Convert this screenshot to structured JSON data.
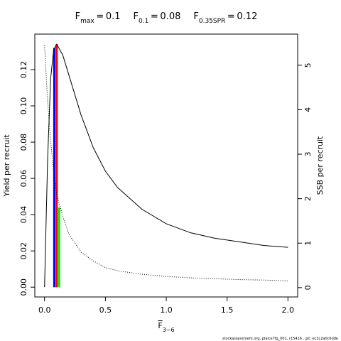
{
  "chart_data": {
    "type": "line",
    "title_parts": [
      {
        "symbol": "F",
        "sub": "max",
        "value": 0.1
      },
      {
        "symbol": "F",
        "sub": "0.1",
        "value": 0.08
      },
      {
        "symbol": "F",
        "sub": "0.35SPR",
        "value": 0.12
      }
    ],
    "xlabel": "F",
    "xlabel_sub": "3−6",
    "ylabel": "Yield per recruit",
    "y2label": "SSB per recruit",
    "footer": "stockassessment.org, plaice7fg_001, r15416 , git: ec2c2a0c6dde",
    "x": [
      0,
      0.025,
      0.05,
      0.075,
      0.1,
      0.15,
      0.2,
      0.3,
      0.4,
      0.5,
      0.6,
      0.8,
      1.0,
      1.2,
      1.4,
      1.6,
      1.8,
      2.0
    ],
    "series": [
      {
        "name": "Yield per recruit",
        "color": "#000000",
        "style": "solid",
        "values": [
          0,
          0.07,
          0.115,
          0.131,
          0.134,
          0.128,
          0.117,
          0.095,
          0.077,
          0.064,
          0.055,
          0.043,
          0.035,
          0.03,
          0.027,
          0.025,
          0.023,
          0.022
        ]
      },
      {
        "name": "SSB per recruit",
        "color": "#000000",
        "style": "dotted",
        "axis": "y2",
        "values": [
          5.45,
          4.2,
          3.3,
          2.6,
          2.1,
          1.6,
          1.2,
          0.8,
          0.6,
          0.45,
          0.38,
          0.3,
          0.25,
          0.22,
          0.2,
          0.18,
          0.17,
          0.15
        ]
      }
    ],
    "reference_lines": [
      {
        "x": 0.08,
        "y": 0.132,
        "color": "#0000ff"
      },
      {
        "x": 0.1,
        "y": 0.134,
        "color": "#ff0000"
      },
      {
        "x": 0.12,
        "y": 1.8,
        "axis": "y2",
        "color": "#00ee00"
      }
    ],
    "xlim": [
      -0.08,
      2.08
    ],
    "xticks": [
      {
        "value": 0,
        "label": "0.0"
      },
      {
        "value": 0.5,
        "label": "0.5"
      },
      {
        "value": 1,
        "label": "1.0"
      },
      {
        "value": 1.5,
        "label": "1.5"
      },
      {
        "value": 2,
        "label": "2.0"
      }
    ],
    "ylim": [
      -0.0054,
      0.1396
    ],
    "yticks": [
      {
        "value": 0,
        "label": "0.00"
      },
      {
        "value": 0.02,
        "label": "0.02"
      },
      {
        "value": 0.04,
        "label": "0.04"
      },
      {
        "value": 0.06,
        "label": "0.06"
      },
      {
        "value": 0.08,
        "label": "0.08"
      },
      {
        "value": 0.1,
        "label": "0.10"
      },
      {
        "value": 0.12,
        "label": "0.12"
      }
    ],
    "y2lim": [
      -0.21,
      5.7
    ],
    "y2ticks": [
      0,
      1,
      2,
      3,
      4,
      5
    ]
  }
}
